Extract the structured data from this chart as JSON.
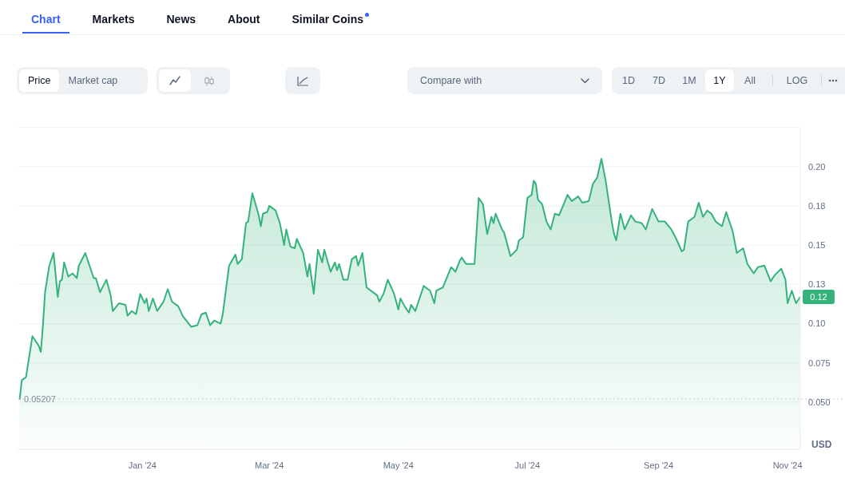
{
  "chart_data": {
    "type": "area",
    "color": "#34b27b",
    "x": [
      "2023-11-04",
      "2023-11-05",
      "2023-11-07",
      "2023-11-10",
      "2023-11-13",
      "2023-11-14",
      "2023-11-15",
      "2023-11-16",
      "2023-11-18",
      "2023-11-20",
      "2023-11-22",
      "2023-11-23",
      "2023-11-24",
      "2023-11-25",
      "2023-11-27",
      "2023-11-29",
      "2023-12-01",
      "2023-12-02",
      "2023-12-05",
      "2023-12-07",
      "2023-12-09",
      "2023-12-10",
      "2023-12-12",
      "2023-12-15",
      "2023-12-17",
      "2023-12-18",
      "2023-12-21",
      "2023-12-24",
      "2023-12-25",
      "2023-12-27",
      "2023-12-29",
      "2023-12-31",
      "2024-01-02",
      "2024-01-03",
      "2024-01-04",
      "2024-01-06",
      "2024-01-08",
      "2024-01-10",
      "2024-01-11",
      "2024-01-13",
      "2024-01-15",
      "2024-01-18",
      "2024-01-20",
      "2024-01-24",
      "2024-01-27",
      "2024-01-29",
      "2024-01-31",
      "2024-02-02",
      "2024-02-04",
      "2024-02-07",
      "2024-02-08",
      "2024-02-11",
      "2024-02-14",
      "2024-02-15",
      "2024-02-17",
      "2024-02-19",
      "2024-02-20",
      "2024-02-22",
      "2024-02-25",
      "2024-02-26",
      "2024-02-27",
      "2024-02-29",
      "2024-03-01",
      "2024-03-04",
      "2024-03-06",
      "2024-03-08",
      "2024-03-09",
      "2024-03-11",
      "2024-03-13",
      "2024-03-14",
      "2024-03-16",
      "2024-03-17",
      "2024-03-19",
      "2024-03-20",
      "2024-03-22",
      "2024-03-24",
      "2024-03-26",
      "2024-03-27",
      "2024-03-30",
      "2024-04-01",
      "2024-04-02",
      "2024-04-03",
      "2024-04-05",
      "2024-04-07",
      "2024-04-09",
      "2024-04-11",
      "2024-04-12",
      "2024-04-14",
      "2024-04-16",
      "2024-04-19",
      "2024-04-21",
      "2024-04-22",
      "2024-04-24",
      "2024-04-26",
      "2024-04-29",
      "2024-05-01",
      "2024-05-02",
      "2024-05-04",
      "2024-05-06",
      "2024-05-07",
      "2024-05-09",
      "2024-05-13",
      "2024-05-16",
      "2024-05-18",
      "2024-05-19",
      "2024-05-22",
      "2024-05-26",
      "2024-05-28",
      "2024-05-30",
      "2024-05-31",
      "2024-06-02",
      "2024-06-06",
      "2024-06-08",
      "2024-06-10",
      "2024-06-12",
      "2024-06-14",
      "2024-06-15",
      "2024-06-16",
      "2024-06-19",
      "2024-06-20",
      "2024-06-23",
      "2024-06-26",
      "2024-06-27",
      "2024-06-29",
      "2024-07-01",
      "2024-07-03",
      "2024-07-04",
      "2024-07-05",
      "2024-07-06",
      "2024-07-08",
      "2024-07-10",
      "2024-07-12",
      "2024-07-14",
      "2024-07-16",
      "2024-07-20",
      "2024-07-22",
      "2024-07-25",
      "2024-07-27",
      "2024-07-30",
      "2024-08-01",
      "2024-08-03",
      "2024-08-05",
      "2024-08-07",
      "2024-08-10",
      "2024-08-11",
      "2024-08-12",
      "2024-08-14",
      "2024-08-16",
      "2024-08-19",
      "2024-08-21",
      "2024-08-24",
      "2024-08-26",
      "2024-08-29",
      "2024-09-01",
      "2024-09-04",
      "2024-09-07",
      "2024-09-09",
      "2024-09-12",
      "2024-09-13",
      "2024-09-15",
      "2024-09-18",
      "2024-09-20",
      "2024-09-22",
      "2024-09-24",
      "2024-09-26",
      "2024-09-28",
      "2024-10-01",
      "2024-10-03",
      "2024-10-06",
      "2024-10-08",
      "2024-10-11",
      "2024-10-13",
      "2024-10-16",
      "2024-10-18",
      "2024-10-21",
      "2024-10-24",
      "2024-10-26",
      "2024-10-29",
      "2024-10-31",
      "2024-11-01",
      "2024-11-03",
      "2024-11-05",
      "2024-11-07"
    ],
    "values": [
      0.052,
      0.064,
      0.066,
      0.092,
      0.086,
      0.082,
      0.099,
      0.12,
      0.137,
      0.145,
      0.117,
      0.127,
      0.128,
      0.139,
      0.13,
      0.132,
      0.129,
      0.137,
      0.145,
      0.137,
      0.129,
      0.129,
      0.12,
      0.128,
      0.118,
      0.108,
      0.113,
      0.112,
      0.105,
      0.108,
      0.106,
      0.119,
      0.113,
      0.116,
      0.108,
      0.116,
      0.108,
      0.112,
      0.114,
      0.122,
      0.114,
      0.111,
      0.105,
      0.098,
      0.099,
      0.106,
      0.107,
      0.099,
      0.102,
      0.1,
      0.106,
      0.137,
      0.144,
      0.138,
      0.141,
      0.164,
      0.165,
      0.183,
      0.169,
      0.162,
      0.17,
      0.171,
      0.175,
      0.172,
      0.164,
      0.15,
      0.16,
      0.149,
      0.148,
      0.154,
      0.148,
      0.145,
      0.13,
      0.138,
      0.119,
      0.147,
      0.139,
      0.147,
      0.133,
      0.139,
      0.134,
      0.138,
      0.128,
      0.128,
      0.141,
      0.143,
      0.137,
      0.145,
      0.123,
      0.12,
      0.118,
      0.114,
      0.119,
      0.128,
      0.119,
      0.109,
      0.116,
      0.111,
      0.107,
      0.112,
      0.108,
      0.124,
      0.121,
      0.113,
      0.121,
      0.123,
      0.136,
      0.133,
      0.14,
      0.142,
      0.138,
      0.138,
      0.18,
      0.176,
      0.157,
      0.168,
      0.164,
      0.17,
      0.16,
      0.158,
      0.143,
      0.147,
      0.153,
      0.155,
      0.18,
      0.182,
      0.191,
      0.189,
      0.179,
      0.176,
      0.165,
      0.16,
      0.17,
      0.169,
      0.182,
      0.178,
      0.181,
      0.177,
      0.178,
      0.189,
      0.193,
      0.205,
      0.191,
      0.164,
      0.157,
      0.153,
      0.17,
      0.16,
      0.169,
      0.165,
      0.164,
      0.16,
      0.173,
      0.165,
      0.165,
      0.16,
      0.155,
      0.146,
      0.147,
      0.165,
      0.168,
      0.177,
      0.168,
      0.172,
      0.17,
      0.165,
      0.162,
      0.171,
      0.159,
      0.145,
      0.148,
      0.138,
      0.132,
      0.136,
      0.137,
      0.127,
      0.131,
      0.135,
      0.128,
      0.113,
      0.121,
      0.113,
      0.117
    ],
    "xlim": [
      "2023-11-03",
      "2024-11-07"
    ],
    "xticks": [
      {
        "value": "2024-01-01",
        "label": "Jan '24"
      },
      {
        "value": "2024-03-01",
        "label": "Mar '24"
      },
      {
        "value": "2024-05-01",
        "label": "May '24"
      },
      {
        "value": "2024-07-01",
        "label": "Jul '24"
      },
      {
        "value": "2024-09-01",
        "label": "Sep '24"
      },
      {
        "value": "2024-11-01",
        "label": "Nov '24"
      }
    ],
    "ylim": [
      0.02,
      0.225
    ],
    "yticks": [
      {
        "value": 0.05,
        "label": "0.050"
      },
      0.075,
      {
        "value": 0.1,
        "label": "0.10"
      },
      {
        "value": 0.125,
        "label": "0.13"
      },
      0.15,
      {
        "value": 0.175,
        "label": "0.18"
      },
      {
        "value": 0.2,
        "label": "0.20"
      }
    ],
    "ylabel": "USD",
    "grid": "y",
    "ref_lines": [
      {
        "axis": "y",
        "value": 0.05207,
        "label": "0.05207",
        "line_style": "dotted",
        "color": "#c3c8d0"
      }
    ],
    "annotations": [
      "Chart",
      "Markets",
      "News",
      "About",
      "Similar Coins",
      "Price",
      "Market cap",
      "Compare with",
      "1D",
      "7D",
      "1M",
      "1Y",
      "All",
      "LOG",
      {
        "text": "0.12",
        "x": "2024-11-07",
        "y": 0.117
      }
    ]
  }
}
